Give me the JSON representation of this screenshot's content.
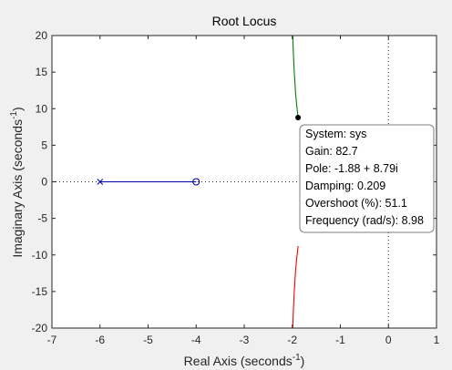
{
  "chart_data": {
    "type": "line",
    "title": "Root Locus",
    "xlabel": "Real Axis (seconds",
    "ylabel": "Imaginary Axis (seconds",
    "axis_unit_exponent": "-1",
    "xlim": [
      -7,
      1
    ],
    "ylim": [
      -20,
      20
    ],
    "x_ticks": [
      -7,
      -6,
      -5,
      -4,
      -3,
      -2,
      -1,
      0,
      1
    ],
    "y_ticks": [
      -20,
      -15,
      -10,
      -5,
      0,
      5,
      10,
      15,
      20
    ],
    "grid": false,
    "reference_lines": {
      "x": 0,
      "y": 0,
      "style": "dotted"
    },
    "series": [
      {
        "color": "#0000a8",
        "points": [
          [
            -6,
            0
          ],
          [
            -4,
            0
          ]
        ]
      },
      {
        "color": "#008000",
        "points": [
          [
            -1.88,
            8.79
          ],
          [
            -1.9,
            10
          ],
          [
            -1.93,
            12
          ],
          [
            -1.96,
            15
          ],
          [
            -1.98,
            18
          ],
          [
            -1.99,
            20
          ]
        ]
      },
      {
        "color": "#ff0000",
        "points": [
          [
            -1.88,
            -8.79
          ],
          [
            -1.9,
            -10
          ],
          [
            -1.93,
            -12
          ],
          [
            -1.96,
            -15
          ],
          [
            -1.98,
            -18
          ],
          [
            -1.99,
            -20
          ]
        ]
      }
    ],
    "poles": [
      {
        "x": -6,
        "y": 0
      }
    ],
    "zeros": [
      {
        "x": -4,
        "y": 0
      }
    ],
    "datatip": {
      "x": -1.88,
      "y": 8.79,
      "lines": [
        "System: sys",
        "Gain: 82.7",
        "Pole: -1.88 + 8.79i",
        "Damping: 0.209",
        "Overshoot (%): 51.1",
        "Frequency (rad/s): 8.98"
      ]
    }
  }
}
